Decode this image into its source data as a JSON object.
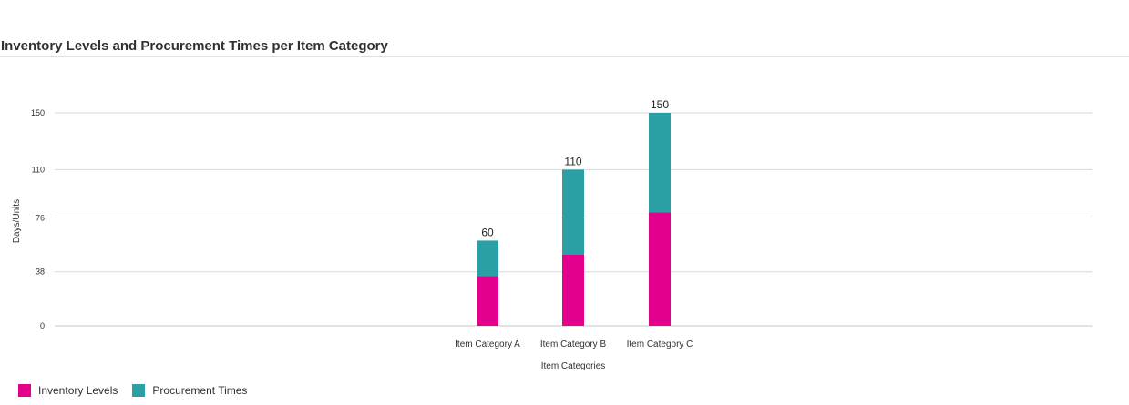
{
  "colors": {
    "inventory": "#E3008C",
    "procurement": "#2AA0A4",
    "grid": "#d9d9d9"
  },
  "chart_data": {
    "type": "bar",
    "stacked": true,
    "title": "Inventory Levels and Procurement Times per Item Category",
    "xlabel": "Item Categories",
    "ylabel": "Days/Units",
    "ylim": [
      0,
      150
    ],
    "yticks": [
      "0",
      "38",
      "76",
      "110",
      "150"
    ],
    "categories": [
      "Item Category A",
      "Item Category B",
      "Item Category C"
    ],
    "series": [
      {
        "name": "Inventory Levels",
        "values": [
          35,
          50,
          80
        ]
      },
      {
        "name": "Procurement Times",
        "values": [
          25,
          60,
          70
        ]
      }
    ],
    "totals": [
      "60",
      "110",
      "150"
    ],
    "grid": true,
    "legend": "bottom-left"
  }
}
